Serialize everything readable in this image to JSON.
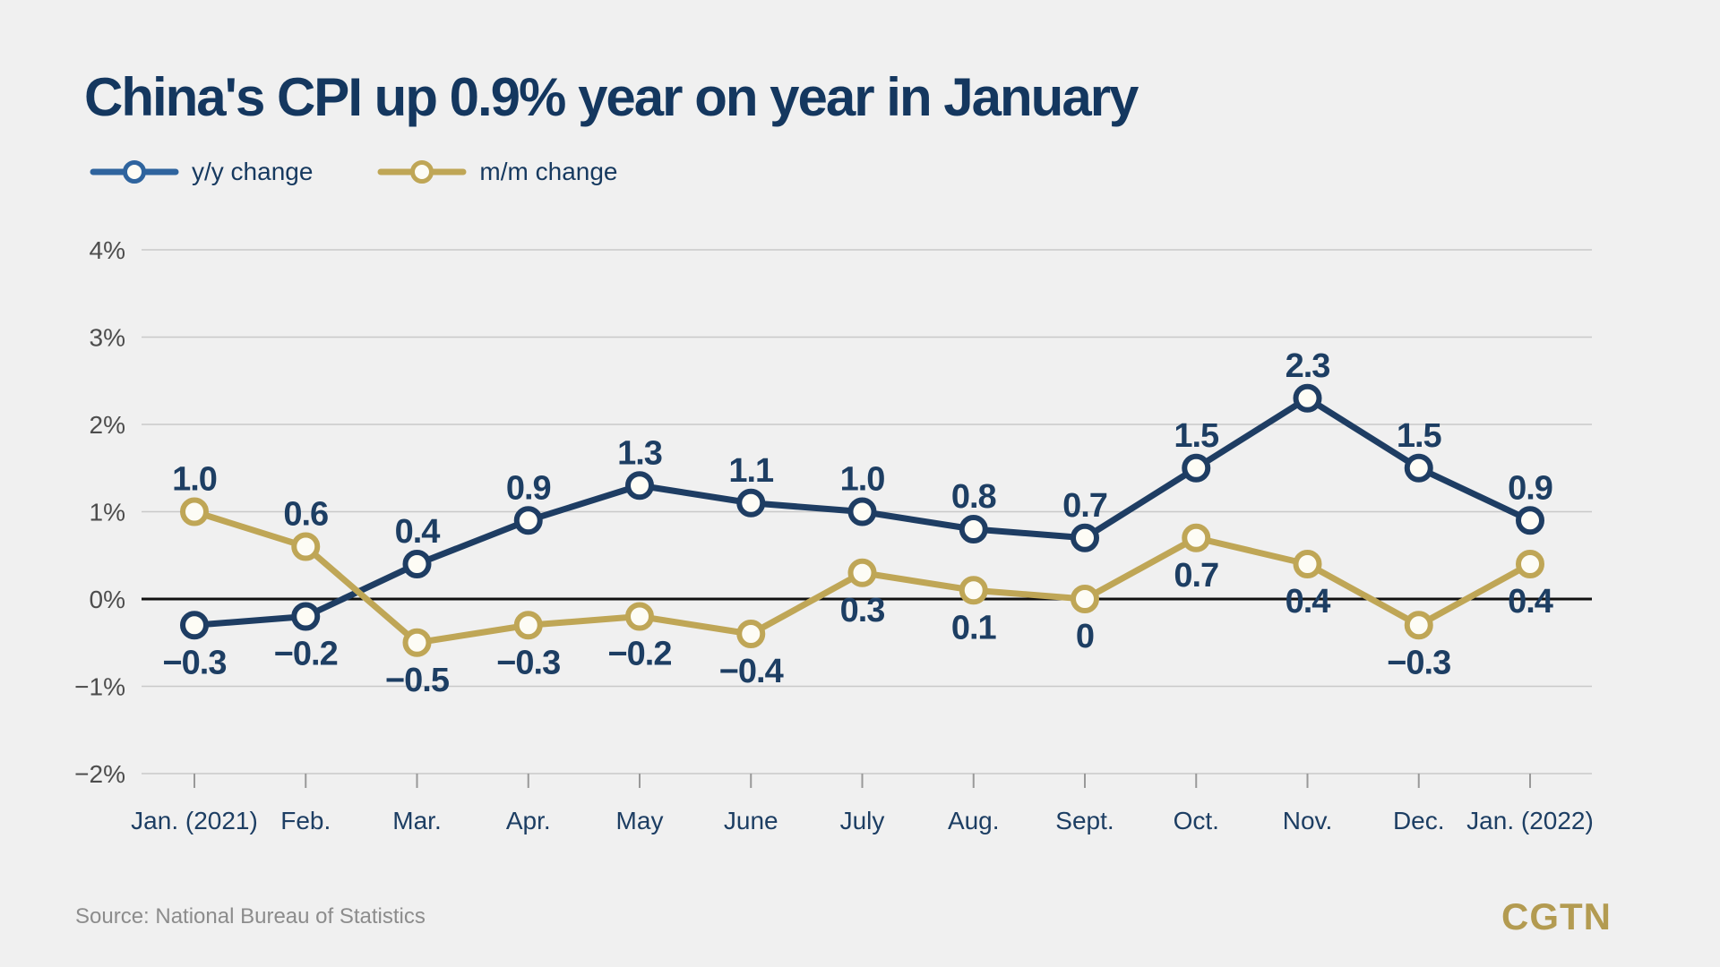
{
  "chart_data": {
    "type": "line",
    "title": "China's CPI up 0.9% year on year in January",
    "categories": [
      "Jan. (2021)",
      "Feb.",
      "Mar.",
      "Apr.",
      "May",
      "June",
      "July",
      "Aug.",
      "Sept.",
      "Oct.",
      "Nov.",
      "Dec.",
      "Jan. (2022)"
    ],
    "series": [
      {
        "name": "y/y change",
        "color": "#1e3d63",
        "legend_color": "#2f649e",
        "values": [
          -0.3,
          -0.2,
          0.4,
          0.9,
          1.3,
          1.1,
          1.0,
          0.8,
          0.7,
          1.5,
          2.3,
          1.5,
          0.9
        ],
        "labels": [
          "−0.3",
          "−0.2",
          "0.4",
          "0.9",
          "1.3",
          "1.1",
          "1.0",
          "0.8",
          "0.7",
          "1.5",
          "2.3",
          "1.5",
          "0.9"
        ],
        "label_side": [
          "below",
          "below",
          "above",
          "above",
          "above",
          "above",
          "above",
          "above",
          "above",
          "above",
          "above",
          "above",
          "above"
        ]
      },
      {
        "name": "m/m change",
        "color": "#bfa656",
        "legend_color": "#bfa656",
        "values": [
          1.0,
          0.6,
          -0.5,
          -0.3,
          -0.2,
          -0.4,
          0.3,
          0.1,
          0,
          0.7,
          0.4,
          -0.3,
          0.4
        ],
        "labels": [
          "1.0",
          "0.6",
          "−0.5",
          "−0.3",
          "−0.2",
          "−0.4",
          "0.3",
          "0.1",
          "0",
          "0.7",
          "0.4",
          "−0.3",
          "0.4"
        ],
        "label_side": [
          "above",
          "above",
          "below",
          "below",
          "below",
          "below",
          "below",
          "below",
          "below",
          "below",
          "below",
          "below",
          "below"
        ]
      }
    ],
    "yticks": [
      {
        "value": 4,
        "label": "4%"
      },
      {
        "value": 3,
        "label": "3%"
      },
      {
        "value": 2,
        "label": "2%"
      },
      {
        "value": 1,
        "label": "1%"
      },
      {
        "value": 0,
        "label": "0%"
      },
      {
        "value": -1,
        "label": "−1%"
      },
      {
        "value": -2,
        "label": "−2%"
      }
    ],
    "ylim": [
      -2,
      4
    ],
    "grid": true,
    "legend_position": "top-left",
    "marker": "open-circle"
  },
  "footer": {
    "source_note": "Source: National Bureau of Statistics",
    "logo_text": "CGTN"
  },
  "colors": {
    "background": "#f0f0f0",
    "title_text": "#14375f",
    "gridline": "#c9c9c9",
    "zero_line": "#111111",
    "axis_tick": "#999999",
    "y_label_text": "#4d4d4d",
    "x_label_text": "#1d3e63",
    "data_label_text": "#1d3e63",
    "marker_fill": "#fdfcf5",
    "source_text": "#8c8c8c",
    "logo_gold": "#b39b51"
  }
}
